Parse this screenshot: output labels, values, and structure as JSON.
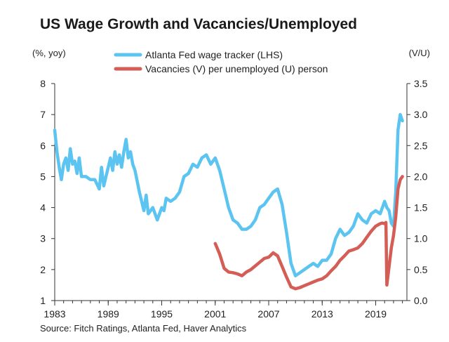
{
  "chart_data": {
    "type": "line",
    "title": "US Wage Growth and Vacancies/Unemployed",
    "left_unit": "(%, yoy)",
    "right_unit": "(V/U)",
    "source": "Source: Fitch Ratings, Atlanta Fed, Haver Analytics",
    "xlim": [
      1983,
      2022.5
    ],
    "x_ticks": [
      1983,
      1989,
      1995,
      2001,
      2007,
      2013,
      2019
    ],
    "y_left": {
      "min": 1,
      "max": 8,
      "ticks": [
        "1",
        "2",
        "3",
        "4",
        "5",
        "6",
        "7",
        "8"
      ]
    },
    "y_right": {
      "min": 0,
      "max": 3.5,
      "ticks": [
        "0.0",
        "0.5",
        "1.0",
        "1.5",
        "2.0",
        "2.5",
        "3.0",
        "3.5"
      ]
    },
    "grid": false,
    "legend": "top-center",
    "series": [
      {
        "name": "Atlanta Fed wage tracker (LHS)",
        "axis": "left",
        "color": "#5bc4f0",
        "x": [
          1983.0,
          1983.25,
          1983.5,
          1983.75,
          1984.0,
          1984.25,
          1984.5,
          1984.75,
          1985.0,
          1985.25,
          1985.5,
          1985.75,
          1986.0,
          1986.5,
          1987.0,
          1987.5,
          1988.0,
          1988.25,
          1988.5,
          1988.75,
          1989.0,
          1989.25,
          1989.5,
          1989.75,
          1990.0,
          1990.25,
          1990.5,
          1990.75,
          1991.0,
          1991.25,
          1991.5,
          1991.75,
          1992.0,
          1992.5,
          1993.0,
          1993.25,
          1993.5,
          1994.0,
          1994.5,
          1995.0,
          1995.25,
          1995.5,
          1996.0,
          1996.5,
          1997.0,
          1997.5,
          1998.0,
          1998.5,
          1999.0,
          1999.5,
          2000.0,
          2000.5,
          2001.0,
          2001.5,
          2002.0,
          2002.5,
          2003.0,
          2003.5,
          2004.0,
          2004.5,
          2005.0,
          2005.5,
          2006.0,
          2006.5,
          2007.0,
          2007.5,
          2008.0,
          2008.5,
          2009.0,
          2009.5,
          2010.0,
          2010.5,
          2011.0,
          2011.5,
          2012.0,
          2012.5,
          2013.0,
          2013.5,
          2014.0,
          2014.5,
          2015.0,
          2015.5,
          2016.0,
          2016.5,
          2017.0,
          2017.5,
          2018.0,
          2018.5,
          2019.0,
          2019.5,
          2020.0,
          2020.25,
          2020.5,
          2020.75,
          2021.0,
          2021.25,
          2021.5,
          2021.75,
          2022.0
        ],
        "values": [
          6.5,
          5.8,
          5.3,
          4.9,
          5.4,
          5.6,
          5.2,
          5.9,
          5.4,
          5.5,
          5.1,
          5.6,
          5.0,
          5.0,
          4.9,
          4.9,
          4.6,
          5.3,
          4.7,
          5.0,
          5.3,
          5.6,
          5.2,
          5.8,
          5.4,
          5.7,
          5.3,
          5.8,
          6.2,
          5.6,
          5.8,
          5.4,
          5.2,
          4.5,
          3.9,
          4.4,
          3.8,
          4.0,
          3.6,
          4.0,
          3.9,
          4.3,
          4.2,
          4.3,
          4.5,
          5.0,
          5.1,
          5.4,
          5.3,
          5.6,
          5.7,
          5.4,
          5.6,
          5.2,
          4.6,
          4.0,
          3.6,
          3.5,
          3.3,
          3.3,
          3.4,
          3.6,
          4.0,
          4.1,
          4.3,
          4.5,
          4.6,
          4.1,
          3.2,
          2.2,
          1.8,
          1.9,
          2.0,
          2.1,
          2.2,
          2.1,
          2.3,
          2.3,
          2.5,
          3.0,
          3.3,
          3.1,
          3.2,
          3.4,
          3.8,
          3.6,
          3.5,
          3.8,
          3.9,
          3.8,
          4.2,
          4.0,
          3.9,
          3.5,
          3.4,
          4.5,
          6.5,
          7.0,
          6.8
        ]
      },
      {
        "name": "Vacancies (V) per unemployed (U) person",
        "axis": "right",
        "color": "#d45d55",
        "x": [
          2001.0,
          2001.5,
          2002.0,
          2002.5,
          2003.0,
          2003.5,
          2004.0,
          2004.5,
          2005.0,
          2005.5,
          2006.0,
          2006.5,
          2007.0,
          2007.5,
          2008.0,
          2008.5,
          2009.0,
          2009.5,
          2010.0,
          2010.5,
          2011.0,
          2011.5,
          2012.0,
          2012.5,
          2013.0,
          2013.5,
          2014.0,
          2014.5,
          2015.0,
          2015.5,
          2016.0,
          2016.5,
          2017.0,
          2017.5,
          2018.0,
          2018.5,
          2019.0,
          2019.5,
          2019.75,
          2020.0,
          2020.15,
          2020.25,
          2020.5,
          2020.75,
          2021.0,
          2021.25,
          2021.5,
          2021.75,
          2022.0
        ],
        "values": [
          0.92,
          0.75,
          0.52,
          0.46,
          0.45,
          0.43,
          0.4,
          0.46,
          0.5,
          0.56,
          0.62,
          0.68,
          0.7,
          0.77,
          0.72,
          0.55,
          0.38,
          0.22,
          0.19,
          0.21,
          0.24,
          0.27,
          0.3,
          0.33,
          0.35,
          0.4,
          0.48,
          0.55,
          0.65,
          0.72,
          0.8,
          0.82,
          0.85,
          0.92,
          1.02,
          1.12,
          1.2,
          1.24,
          1.25,
          1.24,
          1.26,
          0.25,
          0.55,
          0.85,
          1.05,
          1.35,
          1.8,
          1.95,
          2.0
        ]
      }
    ]
  }
}
